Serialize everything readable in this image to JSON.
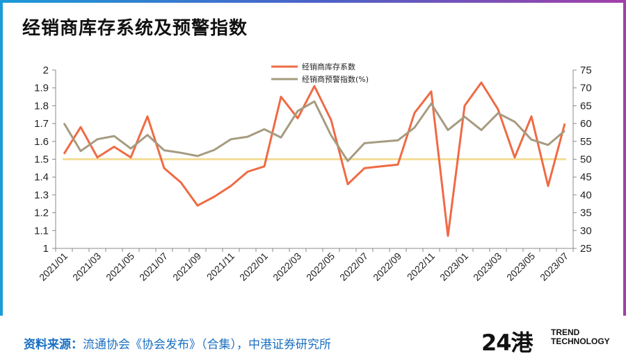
{
  "title": "经销商库存系统及预警指数",
  "source": {
    "label": "资料来源：",
    "text": "流通协会《协会发布》（合集），中港证券研究所"
  },
  "logo": {
    "number": "24港",
    "line1": "TREND",
    "line2": "TECHNOLOGY"
  },
  "colors": {
    "series1": "#ef6a44",
    "series2": "#a69b80",
    "refline": "#f3dd99",
    "accent": "#1a6fc0"
  },
  "chart_data": {
    "type": "line",
    "title": "经销商库存系统及预警指数",
    "x": [
      "2021/01",
      "2021/02",
      "2021/03",
      "2021/04",
      "2021/05",
      "2021/06",
      "2021/07",
      "2021/08",
      "2021/09",
      "2021/10",
      "2021/11",
      "2021/12",
      "2022/01",
      "2022/02",
      "2022/03",
      "2022/04",
      "2022/05",
      "2022/06",
      "2022/07",
      "2022/08",
      "2022/09",
      "2022/10",
      "2022/11",
      "2022/12",
      "2023/01",
      "2023/02",
      "2023/03",
      "2023/04",
      "2023/05",
      "2023/06",
      "2023/07"
    ],
    "tick_labels": [
      "2021/01",
      "2021/03",
      "2021/05",
      "2021/07",
      "2021/09",
      "2021/11",
      "2022/01",
      "2022/03",
      "2022/05",
      "2022/07",
      "2022/09",
      "2022/11",
      "2023/01",
      "2023/03",
      "2023/05",
      "2023/07"
    ],
    "y_left": {
      "range": [
        1,
        2
      ],
      "ticks": [
        "1",
        "1.1",
        "1.2",
        "1.3",
        "1.4",
        "1.5",
        "1.6",
        "1.7",
        "1.8",
        "1.9",
        "2"
      ]
    },
    "y_right": {
      "range": [
        25,
        75
      ],
      "ticks": [
        "25",
        "30",
        "35",
        "40",
        "45",
        "50",
        "55",
        "60",
        "65",
        "70",
        "75"
      ]
    },
    "series": [
      {
        "name": "经销商库存系数",
        "axis": "left",
        "values": [
          1.53,
          1.68,
          1.51,
          1.57,
          1.51,
          1.74,
          1.45,
          1.37,
          1.24,
          1.29,
          1.35,
          1.43,
          1.46,
          1.85,
          1.73,
          1.91,
          1.72,
          1.36,
          1.45,
          1.46,
          1.47,
          1.76,
          1.88,
          1.07,
          1.8,
          1.93,
          1.78,
          1.51,
          1.74,
          1.35,
          1.7
        ]
      },
      {
        "name": "经销商预警指数(%)",
        "axis": "right",
        "values": [
          60.1,
          52.3,
          55.6,
          56.5,
          53.0,
          56.8,
          52.5,
          51.8,
          50.9,
          52.6,
          55.6,
          56.3,
          58.4,
          56.1,
          63.5,
          66.2,
          56.7,
          49.5,
          54.5,
          54.9,
          55.3,
          58.9,
          65.6,
          58.2,
          61.9,
          58.2,
          62.9,
          60.5,
          55.5,
          54.0,
          58.0
        ]
      }
    ],
    "reference_line": {
      "axis": "right",
      "value": 50
    },
    "grid": false,
    "legend": "top-center"
  }
}
